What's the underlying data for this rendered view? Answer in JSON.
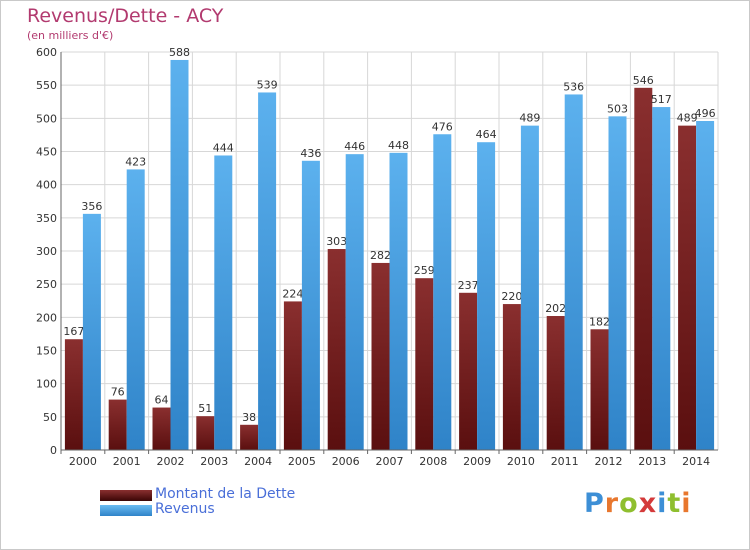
{
  "title": "Revenus/Dette - ACY",
  "subtitle": "(en milliers d'€)",
  "logo": {
    "text": "Proxiti",
    "letter_colors": [
      "#3d8fd6",
      "#e8772e",
      "#8fbf2f",
      "#d43a3a",
      "#3d8fd6",
      "#8fbf2f",
      "#e8772e"
    ]
  },
  "colors": {
    "dette": "#7a1f1f",
    "revenus": "#4ba3e6",
    "grid": "#d7d7d7",
    "title": "#b23a6f"
  },
  "chart_data": {
    "type": "bar",
    "title": "Revenus/Dette - ACY",
    "subtitle": "(en milliers d'€)",
    "categories": [
      "2000",
      "2001",
      "2002",
      "2003",
      "2004",
      "2005",
      "2006",
      "2007",
      "2008",
      "2009",
      "2010",
      "2011",
      "2012",
      "2013",
      "2014"
    ],
    "series": [
      {
        "name": "Montant de la Dette",
        "values": [
          167,
          76,
          64,
          51,
          38,
          224,
          303,
          282,
          259,
          237,
          220,
          202,
          182,
          546,
          489
        ]
      },
      {
        "name": "Revenus",
        "values": [
          356,
          423,
          588,
          444,
          539,
          436,
          446,
          448,
          476,
          464,
          489,
          536,
          503,
          517,
          496
        ]
      }
    ],
    "ylim": [
      0,
      600
    ],
    "yticks": [
      0,
      50,
      100,
      150,
      200,
      250,
      300,
      350,
      400,
      450,
      500,
      550,
      600
    ],
    "grid": true,
    "legend": "bottom-left"
  }
}
